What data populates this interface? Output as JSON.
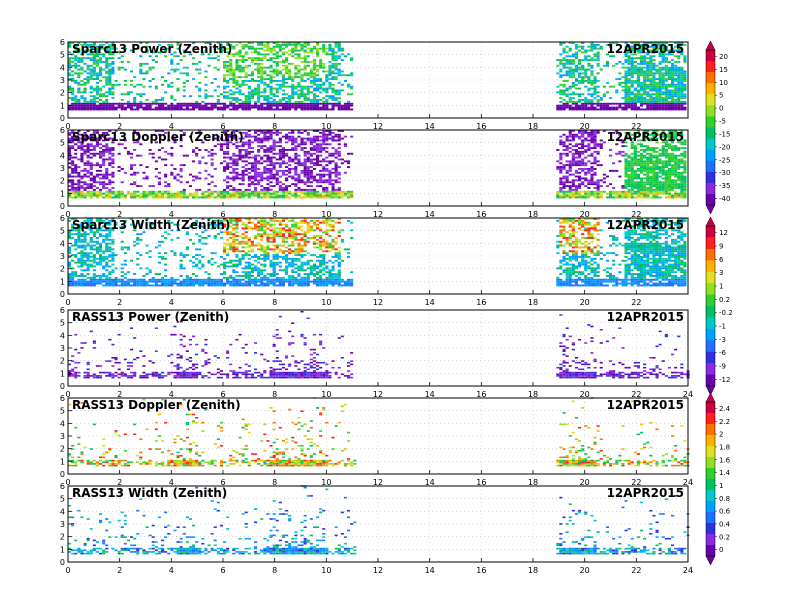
{
  "chart_data": [
    {
      "type": "heatmap",
      "title": "Sparc13 Power (Zenith)",
      "date": "12APR2015",
      "xlim": [
        0,
        24
      ],
      "ylim": [
        0,
        6
      ],
      "xticks": [
        "0",
        "2",
        "4",
        "6",
        "8",
        "10",
        "12",
        "14",
        "16",
        "18",
        "20",
        "22"
      ],
      "yticks": [
        "0",
        "1",
        "2",
        "3",
        "4",
        "5",
        "6"
      ],
      "palette": "power",
      "show_xlabels": true
    },
    {
      "type": "heatmap",
      "title": "Sparc13 Doppler (Zenith)",
      "date": "12APR2015",
      "xlim": [
        0,
        24
      ],
      "ylim": [
        0,
        6
      ],
      "xticks": [
        "0",
        "2",
        "4",
        "6",
        "8",
        "10",
        "12",
        "14",
        "16",
        "18",
        "20",
        "22"
      ],
      "yticks": [
        "0",
        "1",
        "2",
        "3",
        "4",
        "5",
        "6"
      ],
      "palette": "doppler",
      "show_xlabels": true
    },
    {
      "type": "heatmap",
      "title": "Sparc13 Width (Zenith)",
      "date": "12APR2015",
      "xlim": [
        0,
        24
      ],
      "ylim": [
        0,
        6
      ],
      "xticks": [
        "0",
        "2",
        "4",
        "6",
        "8",
        "10",
        "12",
        "14",
        "16",
        "18",
        "20",
        "22"
      ],
      "yticks": [
        "0",
        "1",
        "2",
        "3",
        "4",
        "5",
        "6"
      ],
      "palette": "width",
      "show_xlabels": true
    },
    {
      "type": "heatmap",
      "title": "RASS13 Power (Zenith)",
      "date": "12APR2015",
      "xlim": [
        0,
        24
      ],
      "ylim": [
        0,
        6
      ],
      "xticks": [
        "0",
        "2",
        "4",
        "6",
        "8",
        "10",
        "12",
        "14",
        "16",
        "18",
        "20",
        "22",
        "24"
      ],
      "yticks": [
        "0",
        "1",
        "2",
        "3",
        "4",
        "5",
        "6"
      ],
      "palette": "rpower",
      "show_xlabels": true
    },
    {
      "type": "heatmap",
      "title": "RASS13 Doppler (Zenith)",
      "date": "12APR2015",
      "xlim": [
        0,
        24
      ],
      "ylim": [
        0,
        6
      ],
      "xticks": [
        "0",
        "2",
        "4",
        "6",
        "8",
        "10",
        "12",
        "14",
        "16",
        "18",
        "20",
        "22",
        "24"
      ],
      "yticks": [
        "0",
        "1",
        "2",
        "3",
        "4",
        "5",
        "6"
      ],
      "palette": "rdoppler",
      "show_xlabels": true
    },
    {
      "type": "heatmap",
      "title": "RASS13 Width (Zenith)",
      "date": "12APR2015",
      "xlim": [
        0,
        24
      ],
      "ylim": [
        0,
        6
      ],
      "xticks": [
        "0",
        "2",
        "4",
        "6",
        "8",
        "10",
        "12",
        "14",
        "16",
        "18",
        "20",
        "22",
        "24"
      ],
      "yticks": [
        "0",
        "1",
        "2",
        "3",
        "4",
        "5",
        "6"
      ],
      "palette": "rwidth",
      "show_xlabels": true
    }
  ],
  "colorbars": [
    {
      "labels": [
        "20",
        "15",
        "10",
        "5",
        "0",
        "-5",
        "-15",
        "-20",
        "-25",
        "-30",
        "-35",
        "-40"
      ]
    },
    {
      "labels": [
        "12",
        "9",
        "6",
        "3",
        "1",
        "0.2",
        "-0.2",
        "-1",
        "-3",
        "-6",
        "-9",
        "-12"
      ]
    },
    {
      "labels": [
        "2.4",
        "2.2",
        "2",
        "1.8",
        "1.6",
        "1.4",
        "1",
        "0.8",
        "0.6",
        "0.4",
        "0.2",
        "0"
      ]
    }
  ],
  "colors": {
    "scale": [
      "#6a00a8",
      "#8a2be2",
      "#3030e0",
      "#2070ff",
      "#00a0ff",
      "#00c8c8",
      "#00c060",
      "#30d030",
      "#90e020",
      "#e0e020",
      "#ffb000",
      "#ff7000",
      "#ff2020",
      "#d00040"
    ]
  }
}
